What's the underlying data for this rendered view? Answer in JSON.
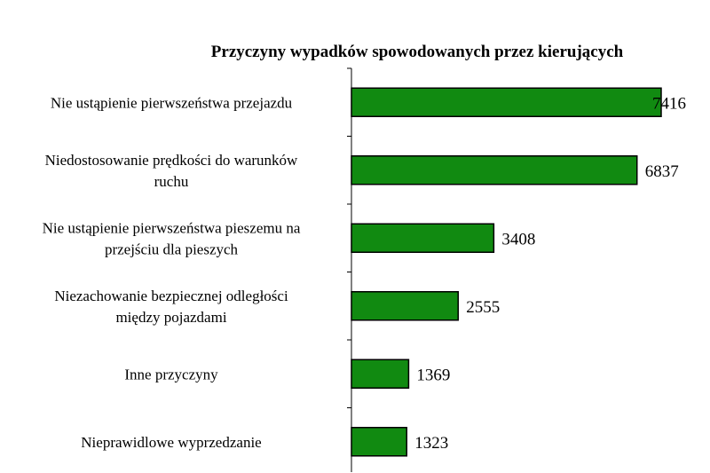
{
  "chart_data": {
    "type": "bar",
    "orientation": "horizontal",
    "title": "Przyczyny wypadków spowodowanych przez kierujących",
    "categories": [
      [
        "Nie ustąpienie pierwszeństwa przejazdu"
      ],
      [
        "Niedostosowanie prędkości do warunków",
        "ruchu"
      ],
      [
        "Nie ustąpienie pierwszeństwa pieszemu na",
        "przejściu dla pieszych"
      ],
      [
        "Niezachowanie bezpiecznej odległości",
        "między pojazdami"
      ],
      [
        "Inne przyczyny"
      ],
      [
        "Nieprawidlowe wyprzedzanie"
      ]
    ],
    "values": [
      7416,
      6837,
      3408,
      2555,
      1369,
      1323
    ],
    "xlim": [
      0,
      7416
    ],
    "grid": false,
    "legend": "none",
    "bar_color": "#118a11",
    "bar_edge_color": "#000000"
  }
}
